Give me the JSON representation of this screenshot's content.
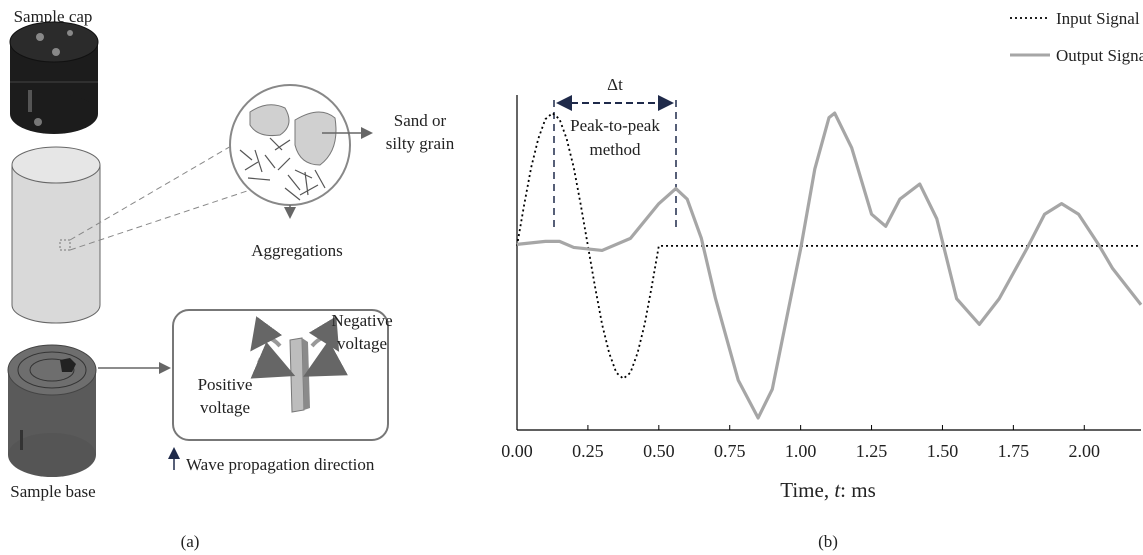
{
  "panel_a": {
    "sample_cap": "Sample cap",
    "grain_label": [
      "Sand or",
      "silty grain"
    ],
    "aggregations": "Aggregations",
    "negative": [
      "Negative",
      "voltage"
    ],
    "positive": [
      "Positive",
      "voltage"
    ],
    "wave": "Wave propagation direction",
    "sample_base": "Sample base",
    "caption": "(a)"
  },
  "chart_data": {
    "type": "line",
    "caption": "(b)",
    "xlabel": [
      "Time, ",
      "t",
      ": ms"
    ],
    "xlim": [
      0,
      2.2
    ],
    "ylim": [
      -1.22,
      1.0
    ],
    "xticks": [
      {
        "value": 0,
        "label": "0.00"
      },
      {
        "value": 0.25,
        "label": "0.25"
      },
      {
        "value": 0.5,
        "label": "0.50"
      },
      {
        "value": 0.75,
        "label": "0.75"
      },
      {
        "value": 1,
        "label": "1.00"
      },
      {
        "value": 1.25,
        "label": "1.25"
      },
      {
        "value": 1.5,
        "label": "1.50"
      },
      {
        "value": 1.75,
        "label": "1.75"
      },
      {
        "value": 2,
        "label": "2.00"
      }
    ],
    "legend": "upper right",
    "annotations": {
      "delta": "Δt",
      "method": [
        "Peak-to-peak",
        "method"
      ]
    },
    "series": [
      {
        "name": "Input Signal",
        "color": "#000000",
        "style": "dotted",
        "x": [
          0,
          0.025,
          0.05,
          0.075,
          0.1,
          0.125,
          0.15,
          0.175,
          0.2,
          0.225,
          0.25,
          0.275,
          0.3,
          0.325,
          0.35,
          0.375,
          0.4,
          0.425,
          0.45,
          0.475,
          0.5,
          2.2
        ],
        "values": [
          0,
          0.27,
          0.52,
          0.71,
          0.84,
          0.88,
          0.84,
          0.71,
          0.52,
          0.27,
          0,
          -0.27,
          -0.52,
          -0.71,
          -0.84,
          -0.88,
          -0.84,
          -0.71,
          -0.52,
          -0.27,
          0,
          0
        ]
      },
      {
        "name": "Output Signal",
        "color": "#a6a6a6",
        "style": "solid",
        "x": [
          0,
          0.1,
          0.15,
          0.2,
          0.3,
          0.4,
          0.5,
          0.56,
          0.6,
          0.65,
          0.7,
          0.78,
          0.85,
          0.9,
          1.0,
          1.05,
          1.1,
          1.12,
          1.18,
          1.25,
          1.3,
          1.35,
          1.42,
          1.48,
          1.55,
          1.63,
          1.7,
          1.8,
          1.86,
          1.92,
          1.98,
          2.05,
          2.1,
          2.2
        ],
        "values": [
          0.01,
          0.03,
          0.03,
          -0.01,
          -0.03,
          0.05,
          0.28,
          0.38,
          0.31,
          0.05,
          -0.35,
          -0.89,
          -1.14,
          -0.95,
          -0.02,
          0.51,
          0.85,
          0.88,
          0.65,
          0.21,
          0.13,
          0.31,
          0.41,
          0.18,
          -0.35,
          -0.52,
          -0.35,
          -0.01,
          0.21,
          0.28,
          0.21,
          0.01,
          -0.15,
          -0.39
        ]
      }
    ]
  }
}
